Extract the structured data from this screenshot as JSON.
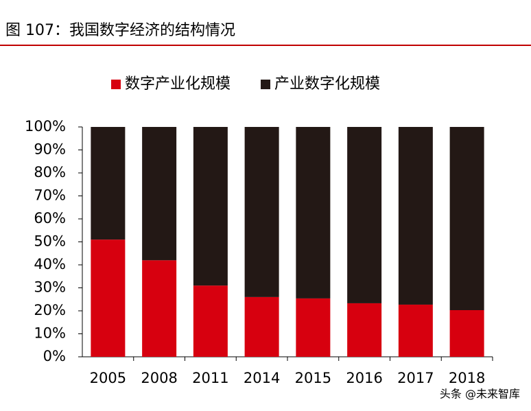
{
  "chart_data": {
    "type": "stacked_bar",
    "title": "图 107：我国数字经济的结构情况",
    "categories": [
      "2005",
      "2008",
      "2011",
      "2014",
      "2015",
      "2016",
      "2017",
      "2018"
    ],
    "series": [
      {
        "name": "数字产业化规模",
        "color": "#d7000f",
        "values": [
          51,
          42,
          31,
          26,
          25.4,
          23.3,
          22.7,
          20.3
        ]
      },
      {
        "name": "产业数字化规模",
        "color": "#231815",
        "values": [
          49,
          58,
          69,
          74,
          74.6,
          76.7,
          77.3,
          79.7
        ]
      }
    ],
    "ylim": [
      0,
      100
    ],
    "yticks": [
      {
        "value": 0,
        "label": "0%"
      },
      {
        "value": 10,
        "label": "10%"
      },
      {
        "value": 20,
        "label": "20%"
      },
      {
        "value": 30,
        "label": "30%"
      },
      {
        "value": 40,
        "label": "40%"
      },
      {
        "value": 50,
        "label": "50%"
      },
      {
        "value": 60,
        "label": "60%"
      },
      {
        "value": 70,
        "label": "70%"
      },
      {
        "value": 80,
        "label": "80%"
      },
      {
        "value": 90,
        "label": "90%"
      },
      {
        "value": 100,
        "label": "100%"
      }
    ],
    "grid": false,
    "legend": "top",
    "watermark": "头条 @未来智库"
  }
}
